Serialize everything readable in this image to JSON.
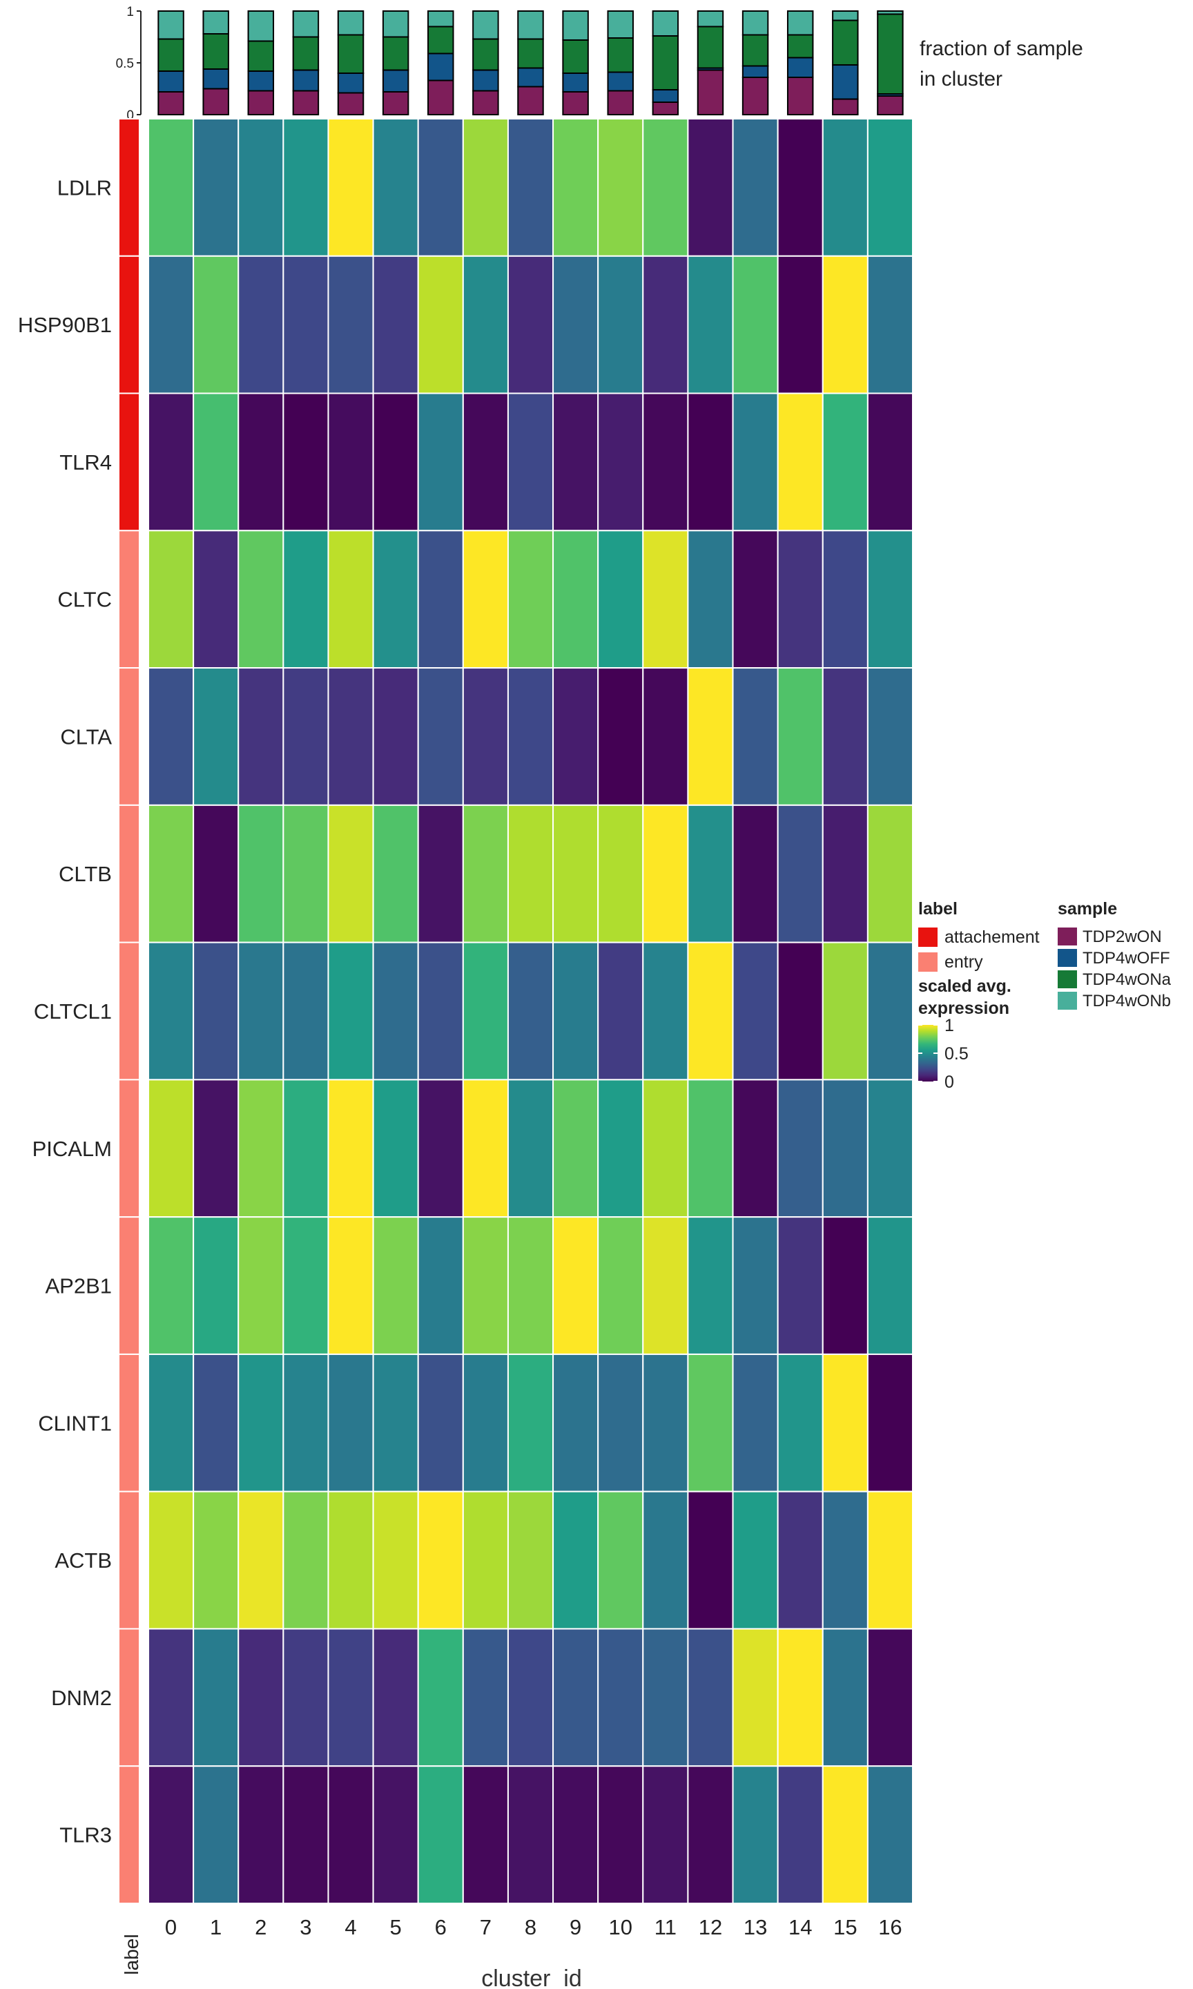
{
  "chart_data": {
    "type": "heatmap",
    "title": "",
    "xlabel": "cluster_id",
    "ylabel": "",
    "row_annotation_label": "label",
    "clusters": [
      "0",
      "1",
      "2",
      "3",
      "4",
      "5",
      "6",
      "7",
      "8",
      "9",
      "10",
      "11",
      "12",
      "13",
      "14",
      "15",
      "16"
    ],
    "genes": [
      "LDLR",
      "HSP90B1",
      "TLR4",
      "CLTC",
      "CLTA",
      "CLTB",
      "CLTCL1",
      "PICALM",
      "AP2B1",
      "CLINT1",
      "ACTB",
      "DNM2",
      "TLR3"
    ],
    "gene_labels": [
      "attachement",
      "attachement",
      "attachement",
      "entry",
      "entry",
      "entry",
      "entry",
      "entry",
      "entry",
      "entry",
      "entry",
      "entry",
      "entry"
    ],
    "values": [
      [
        0.72,
        0.38,
        0.45,
        0.52,
        1.0,
        0.45,
        0.28,
        0.85,
        0.28,
        0.78,
        0.82,
        0.75,
        0.05,
        0.35,
        0.0,
        0.48,
        0.55
      ],
      [
        0.35,
        0.75,
        0.22,
        0.22,
        0.25,
        0.18,
        0.9,
        0.48,
        0.12,
        0.35,
        0.42,
        0.12,
        0.48,
        0.72,
        0.0,
        1.0,
        0.38
      ],
      [
        0.05,
        0.7,
        0.02,
        0.0,
        0.03,
        0.0,
        0.42,
        0.02,
        0.22,
        0.05,
        0.08,
        0.02,
        0.0,
        0.42,
        1.0,
        0.65,
        0.02
      ],
      [
        0.85,
        0.12,
        0.75,
        0.55,
        0.9,
        0.5,
        0.25,
        1.0,
        0.78,
        0.72,
        0.55,
        0.95,
        0.4,
        0.02,
        0.15,
        0.22,
        0.5
      ],
      [
        0.25,
        0.48,
        0.15,
        0.18,
        0.15,
        0.12,
        0.25,
        0.15,
        0.22,
        0.08,
        0.0,
        0.02,
        1.0,
        0.28,
        0.72,
        0.15,
        0.35
      ],
      [
        0.8,
        0.02,
        0.72,
        0.75,
        0.92,
        0.72,
        0.05,
        0.8,
        0.88,
        0.88,
        0.88,
        1.0,
        0.5,
        0.02,
        0.25,
        0.08,
        0.85
      ],
      [
        0.45,
        0.25,
        0.4,
        0.38,
        0.55,
        0.35,
        0.25,
        0.65,
        0.3,
        0.42,
        0.18,
        0.45,
        1.0,
        0.22,
        0.0,
        0.85,
        0.38
      ],
      [
        0.9,
        0.05,
        0.82,
        0.62,
        1.0,
        0.55,
        0.05,
        1.0,
        0.48,
        0.75,
        0.55,
        0.88,
        0.72,
        0.02,
        0.3,
        0.35,
        0.45
      ],
      [
        0.72,
        0.6,
        0.82,
        0.65,
        1.0,
        0.8,
        0.42,
        0.82,
        0.8,
        1.0,
        0.78,
        0.95,
        0.52,
        0.38,
        0.15,
        0.0,
        0.52
      ],
      [
        0.48,
        0.25,
        0.52,
        0.45,
        0.4,
        0.45,
        0.25,
        0.42,
        0.62,
        0.38,
        0.35,
        0.38,
        0.75,
        0.32,
        0.52,
        1.0,
        0.0
      ],
      [
        0.92,
        0.82,
        0.97,
        0.8,
        0.88,
        0.92,
        1.0,
        0.88,
        0.85,
        0.55,
        0.75,
        0.4,
        0.0,
        0.55,
        0.15,
        0.35,
        1.0
      ],
      [
        0.15,
        0.42,
        0.12,
        0.18,
        0.2,
        0.12,
        0.65,
        0.28,
        0.22,
        0.28,
        0.28,
        0.32,
        0.25,
        0.95,
        1.0,
        0.38,
        0.02
      ],
      [
        0.05,
        0.38,
        0.03,
        0.02,
        0.02,
        0.05,
        0.62,
        0.02,
        0.05,
        0.03,
        0.02,
        0.05,
        0.02,
        0.45,
        0.18,
        1.0,
        0.38
      ]
    ],
    "samples": [
      "TDP2wON",
      "TDP4wOFF",
      "TDP4wONa",
      "TDP4wONb"
    ],
    "sample_fractions": [
      [
        0.22,
        0.2,
        0.31,
        0.27
      ],
      [
        0.25,
        0.19,
        0.34,
        0.22
      ],
      [
        0.23,
        0.19,
        0.29,
        0.29
      ],
      [
        0.23,
        0.2,
        0.32,
        0.25
      ],
      [
        0.21,
        0.19,
        0.37,
        0.23
      ],
      [
        0.22,
        0.21,
        0.32,
        0.25
      ],
      [
        0.33,
        0.26,
        0.26,
        0.15
      ],
      [
        0.23,
        0.2,
        0.3,
        0.27
      ],
      [
        0.27,
        0.18,
        0.28,
        0.27
      ],
      [
        0.22,
        0.18,
        0.32,
        0.28
      ],
      [
        0.23,
        0.18,
        0.33,
        0.26
      ],
      [
        0.12,
        0.12,
        0.52,
        0.24
      ],
      [
        0.43,
        0.02,
        0.4,
        0.15
      ],
      [
        0.36,
        0.11,
        0.3,
        0.23
      ],
      [
        0.36,
        0.19,
        0.22,
        0.23
      ],
      [
        0.15,
        0.33,
        0.43,
        0.09
      ],
      [
        0.18,
        0.02,
        0.77,
        0.03
      ]
    ],
    "bar_axis_ticks": [
      "0",
      "0.5",
      "1"
    ],
    "bar_axis_tick_values": [
      0,
      0.5,
      1
    ],
    "bar_title_line1": "fraction of sample",
    "bar_title_line2": "in cluster",
    "legend_label_title": "label",
    "legend_label_items": [
      "attachement",
      "entry"
    ],
    "legend_expr_title_line1": "scaled avg.",
    "legend_expr_title_line2": "expression",
    "legend_expr_ticks": [
      "1",
      "0.5",
      "0"
    ],
    "legend_expr_tick_values": [
      1,
      0.5,
      0
    ],
    "legend_sample_title": "sample",
    "legend_sample_items": [
      "TDP2wON",
      "TDP4wOFF",
      "TDP4wONa",
      "TDP4wONb"
    ]
  },
  "colors": {
    "attachement": "#e8130f",
    "entry": "#fa8072",
    "samples": [
      "#7e1e5a",
      "#12558a",
      "#167a36",
      "#48af9b"
    ],
    "viridis": [
      "#440154",
      "#482878",
      "#3e4989",
      "#31688e",
      "#26828e",
      "#1f9e89",
      "#35b779",
      "#6ece58",
      "#b5de2b",
      "#fde725"
    ],
    "text": "#222222",
    "axis_title": "#333333"
  }
}
